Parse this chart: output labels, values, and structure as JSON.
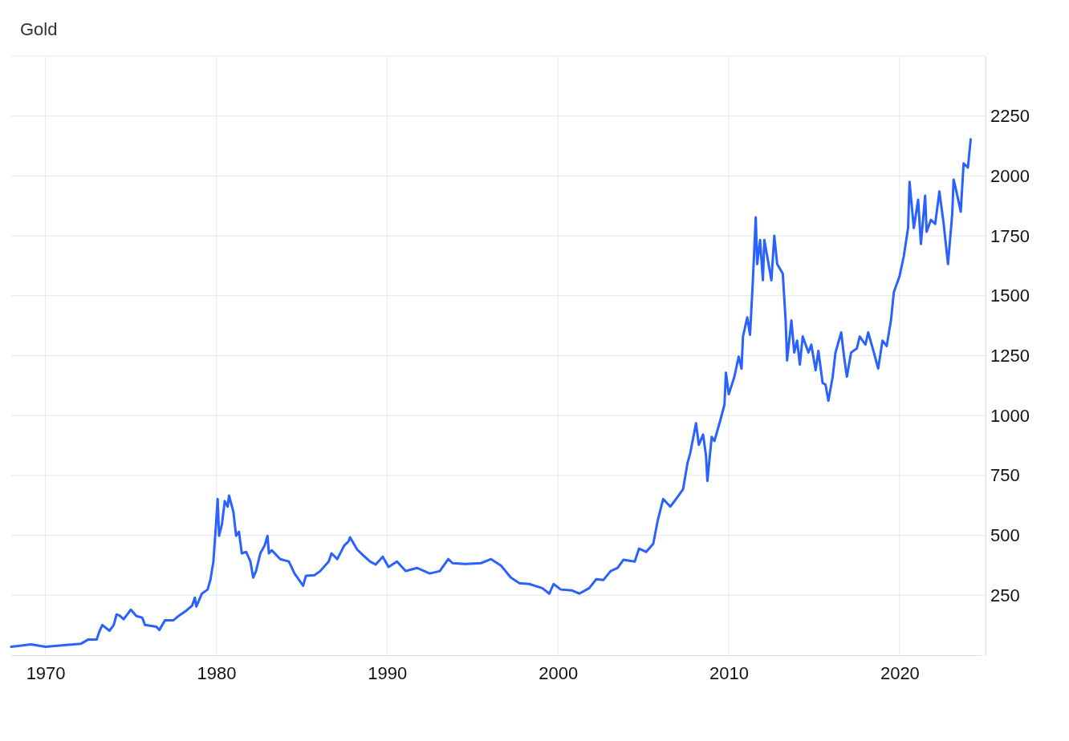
{
  "chart_data": {
    "type": "line",
    "title": "Gold",
    "x": [
      "1968-01",
      "1969-03",
      "1970-01",
      "1971-02",
      "1972-02",
      "1972-07",
      "1973-01",
      "1973-03",
      "1973-05",
      "1973-10",
      "1974-01",
      "1974-03",
      "1974-05",
      "1974-08",
      "1975-01",
      "1975-05",
      "1975-09",
      "1975-11",
      "1976-07",
      "1976-09",
      "1977-01",
      "1977-07",
      "1977-11",
      "1978-04",
      "1978-08",
      "1978-10",
      "1978-11",
      "1979-03",
      "1979-07",
      "1979-09",
      "1979-11",
      "1980-01",
      "1980-02",
      "1980-03",
      "1980-05",
      "1980-07",
      "1980-09",
      "1980-10",
      "1981-01",
      "1981-03",
      "1981-05",
      "1981-07",
      "1981-10",
      "1982-01",
      "1982-03",
      "1982-05",
      "1982-08",
      "1982-11",
      "1983-01",
      "1983-02",
      "1983-04",
      "1983-10",
      "1984-04",
      "1984-08",
      "1985-02",
      "1985-04",
      "1985-10",
      "1986-02",
      "1986-08",
      "1986-10",
      "1987-02",
      "1987-07",
      "1987-10",
      "1987-11",
      "1988-04",
      "1988-08",
      "1989-01",
      "1989-05",
      "1989-10",
      "1990-02",
      "1990-08",
      "1991-02",
      "1991-10",
      "1992-07",
      "1993-02",
      "1993-08",
      "1993-11",
      "1994-08",
      "1995-07",
      "1996-02",
      "1996-09",
      "1997-04",
      "1997-10",
      "1998-05",
      "1999-02",
      "1999-07",
      "1999-10",
      "2000-03",
      "2000-11",
      "2001-04",
      "2001-11",
      "2002-04",
      "2002-09",
      "2003-02",
      "2003-07",
      "2003-11",
      "2004-07",
      "2004-10",
      "2005-03",
      "2005-08",
      "2005-11",
      "2006-03",
      "2006-08",
      "2007-01",
      "2007-05",
      "2007-08",
      "2007-10",
      "2008-02",
      "2008-04",
      "2008-07",
      "2008-09",
      "2008-10",
      "2009-01",
      "2009-03",
      "2009-07",
      "2009-10",
      "2009-11",
      "2010-01",
      "2010-05",
      "2010-08",
      "2010-10",
      "2010-11",
      "2011-02",
      "2011-04",
      "2011-06",
      "2011-08",
      "2011-09",
      "2011-11",
      "2012-01",
      "2012-02",
      "2012-04",
      "2012-07",
      "2012-09",
      "2012-11",
      "2013-03",
      "2013-05",
      "2013-06",
      "2013-09",
      "2013-11",
      "2014-01",
      "2014-03",
      "2014-05",
      "2014-09",
      "2014-11",
      "2015-02",
      "2015-04",
      "2015-07",
      "2015-09",
      "2015-11",
      "2016-02",
      "2016-04",
      "2016-08",
      "2016-10",
      "2016-12",
      "2017-03",
      "2017-07",
      "2017-09",
      "2018-01",
      "2018-03",
      "2018-07",
      "2018-10",
      "2019-01",
      "2019-04",
      "2019-07",
      "2019-09",
      "2020-01",
      "2020-04",
      "2020-07",
      "2020-08",
      "2020-11",
      "2021-02",
      "2021-04",
      "2021-07",
      "2021-08",
      "2021-11",
      "2022-02",
      "2022-05",
      "2022-08",
      "2022-11",
      "2023-02",
      "2023-03",
      "2023-05",
      "2023-08",
      "2023-10",
      "2024-01",
      "2024-03"
    ],
    "series": [
      {
        "color": "#2962ff",
        "values": [
          35,
          45,
          35,
          42,
          48,
          65,
          65,
          100,
          126,
          102,
          126,
          170,
          166,
          150,
          190,
          163,
          157,
          126,
          119,
          105,
          146,
          146,
          166,
          186,
          206,
          240,
          203,
          257,
          274,
          317,
          391,
          559,
          652,
          498,
          545,
          643,
          620,
          666,
          599,
          498,
          515,
          425,
          431,
          391,
          324,
          351,
          425,
          458,
          498,
          425,
          438,
          401,
          391,
          341,
          290,
          331,
          334,
          351,
          391,
          425,
          401,
          458,
          475,
          492,
          441,
          418,
          391,
          378,
          411,
          368,
          391,
          351,
          364,
          341,
          351,
          401,
          384,
          381,
          384,
          401,
          374,
          324,
          300,
          297,
          280,
          257,
          297,
          274,
          270,
          257,
          280,
          317,
          314,
          351,
          364,
          398,
          391,
          445,
          431,
          465,
          559,
          652,
          620,
          660,
          693,
          800,
          844,
          968,
          878,
          921,
          834,
          727,
          911,
          894,
          978,
          1045,
          1179,
          1089,
          1162,
          1246,
          1196,
          1330,
          1410,
          1337,
          1565,
          1827,
          1632,
          1733,
          1565,
          1733,
          1666,
          1565,
          1750,
          1632,
          1592,
          1397,
          1230,
          1397,
          1263,
          1313,
          1213,
          1330,
          1263,
          1296,
          1189,
          1270,
          1136,
          1129,
          1062,
          1162,
          1263,
          1347,
          1246,
          1162,
          1263,
          1280,
          1330,
          1296,
          1347,
          1263,
          1196,
          1313,
          1290,
          1397,
          1515,
          1582,
          1666,
          1783,
          1975,
          1783,
          1901,
          1716,
          1918,
          1767,
          1817,
          1800,
          1935,
          1800,
          1632,
          1844,
          1985,
          1935,
          1851,
          2052,
          2035,
          2153
        ]
      }
    ],
    "xlim": [
      "1968-01",
      "2024-10"
    ],
    "xticks": [
      {
        "value": "1970",
        "label": "1970"
      },
      {
        "value": "1980",
        "label": "1980"
      },
      {
        "value": "1990",
        "label": "1990"
      },
      {
        "value": "2000",
        "label": "2000"
      },
      {
        "value": "2010",
        "label": "2010"
      },
      {
        "value": "2020",
        "label": "2020"
      }
    ],
    "ylim": [
      0,
      2500
    ],
    "yticks": [
      250,
      500,
      750,
      1000,
      1250,
      1500,
      1750,
      2000,
      2250,
      {
        "value": 2500,
        "label": null
      }
    ],
    "grid": true,
    "marker": "none",
    "line_style": "solid"
  }
}
